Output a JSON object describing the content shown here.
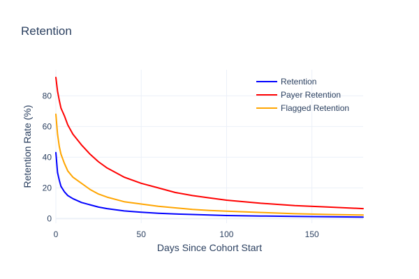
{
  "chart_data": {
    "type": "line",
    "title": "Retention",
    "xlabel": "Days Since Cohort Start",
    "ylabel": "Retention Rate (%)",
    "xlim": [
      0,
      180
    ],
    "ylim": [
      -3,
      97
    ],
    "xticks": [
      0,
      50,
      100,
      150
    ],
    "yticks": [
      0,
      20,
      40,
      60,
      80
    ],
    "grid": true,
    "legend_position": "top-right",
    "x": [
      0,
      1,
      2,
      3,
      5,
      7,
      10,
      15,
      20,
      25,
      30,
      40,
      50,
      60,
      70,
      80,
      90,
      100,
      120,
      140,
      160,
      180
    ],
    "series": [
      {
        "name": "Retention",
        "color": "#0000ff",
        "values": [
          43,
          30,
          25,
          21,
          17.5,
          15,
          13,
          10.5,
          9,
          7.5,
          6.5,
          5,
          4.2,
          3.5,
          3,
          2.7,
          2.3,
          2,
          1.7,
          1.4,
          1.2,
          1
        ]
      },
      {
        "name": "Payer Retention",
        "color": "#ff0000",
        "values": [
          92,
          83,
          77,
          72,
          67,
          61,
          55,
          48,
          42,
          37,
          33,
          27,
          23,
          20,
          17,
          15,
          13.5,
          12,
          10,
          8.5,
          7.5,
          6.5
        ]
      },
      {
        "name": "Flagged Retention",
        "color": "#ffa500",
        "values": [
          68,
          55,
          47,
          42,
          36,
          31,
          27,
          23,
          19,
          16,
          14,
          11,
          9.5,
          8,
          7,
          6,
          5.3,
          4.8,
          4,
          3.2,
          2.7,
          2.3
        ]
      }
    ]
  }
}
